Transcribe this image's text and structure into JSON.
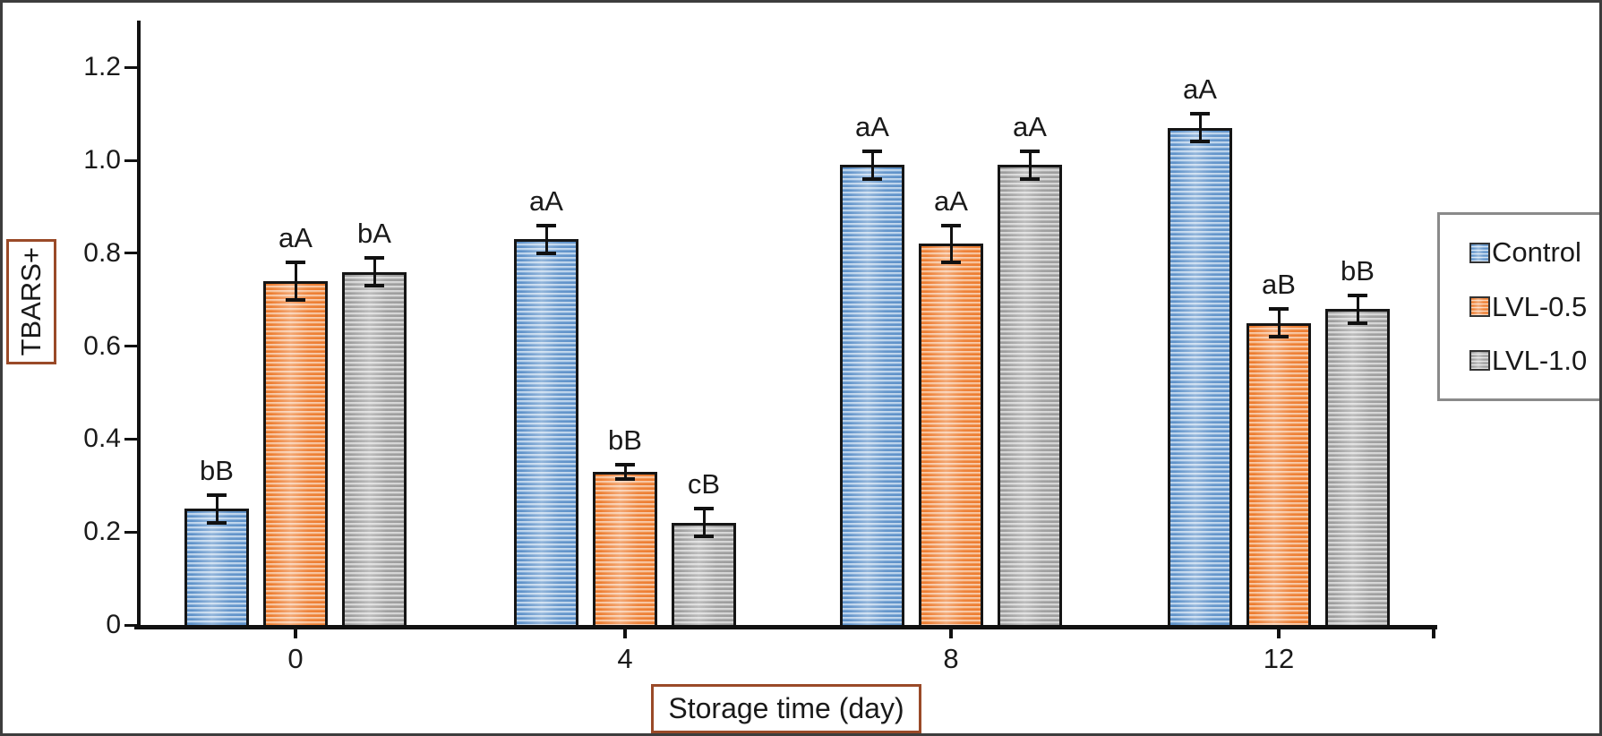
{
  "chart_data": {
    "type": "bar",
    "title": "",
    "xlabel": "Storage time (day)",
    "ylabel": "TBARS+",
    "categories": [
      "0",
      "4",
      "8",
      "12"
    ],
    "yticks": [
      "0",
      "0.2",
      "0.4",
      "0.6",
      "0.8",
      "1.0",
      "1.2"
    ],
    "ylim": [
      0,
      1.3
    ],
    "grid": false,
    "legend_position": "right-outside",
    "error_bars": true,
    "series": [
      {
        "name": "Control",
        "values": [
          0.25,
          0.83,
          0.99,
          1.07
        ],
        "errors": [
          0.03,
          0.03,
          0.03,
          0.03
        ],
        "point_labels": [
          "bB",
          "aA",
          "aA",
          "aA"
        ],
        "stripe_dark": "#5f92c9",
        "stripe_mid": "#aecbe9",
        "stripe_light": "#ecf4fb"
      },
      {
        "name": "LVL-0.5",
        "values": [
          0.74,
          0.33,
          0.82,
          0.65
        ],
        "errors": [
          0.04,
          0.015,
          0.04,
          0.03
        ],
        "point_labels": [
          "aA",
          "bB",
          "aA",
          "aB"
        ],
        "stripe_dark": "#ed7d31",
        "stripe_mid": "#f6b583",
        "stripe_light": "#fdeade"
      },
      {
        "name": "LVL-1.0",
        "values": [
          0.76,
          0.22,
          0.99,
          0.68
        ],
        "errors": [
          0.03,
          0.03,
          0.03,
          0.03
        ],
        "point_labels": [
          "bA",
          "cB",
          "aA",
          "bB"
        ],
        "stripe_dark": "#9d9d9d",
        "stripe_mid": "#cfcfcf",
        "stripe_light": "#f0f0f0"
      }
    ]
  },
  "colors": {
    "axis": "#111111",
    "bar_border": "#151515",
    "annotation_text": "#1a1a1a",
    "label_box_border": "#9a4a28",
    "legend_border": "#8a8a8a",
    "outer_border": "#3d3d3d",
    "background": "#ffffff"
  }
}
